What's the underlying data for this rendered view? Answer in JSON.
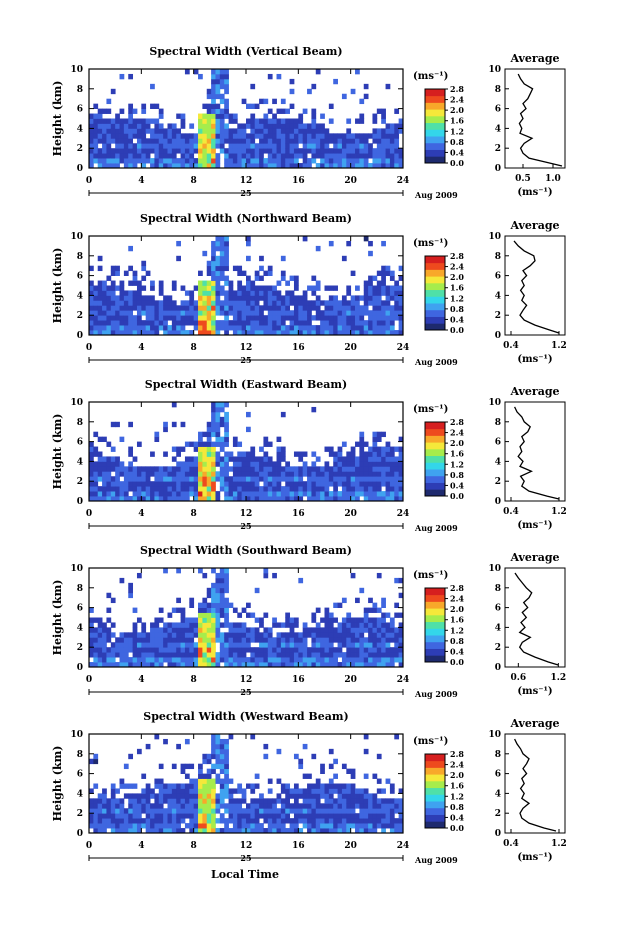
{
  "figure": {
    "xlabel": "Local Time",
    "date_label": "Aug 2009",
    "day_label": "25",
    "ylabel": "Height (km)",
    "avg_title": "Average",
    "colorbar_unit": "(ms⁻¹)",
    "avg_unit": "(ms⁻¹)",
    "colorbar_ticks": [
      "0.0",
      "0.4",
      "0.8",
      "1.2",
      "1.6",
      "2.0",
      "2.4",
      "2.8"
    ],
    "colormap": [
      "#1e2a6e",
      "#2d3db5",
      "#3f66e0",
      "#3fa2f0",
      "#33d6ea",
      "#4fe0a8",
      "#a6ec4c",
      "#f5e83a",
      "#f8a82a",
      "#ee4a1e",
      "#d61f1f"
    ]
  },
  "chart_data": [
    {
      "type": "heatmap",
      "title": "Spectral Width (Vertical Beam)",
      "xlabel": "",
      "ylabel": "Height (km)",
      "xlim": [
        0,
        24
      ],
      "ylim": [
        0,
        10
      ],
      "xticks": [
        0,
        4,
        8,
        12,
        16,
        20,
        24
      ],
      "yticks": [
        0,
        2,
        4,
        6,
        8,
        10
      ],
      "colorbar_range": [
        0.0,
        2.8
      ],
      "profile": {
        "title": "Average",
        "xlim": [
          0.2,
          1.2
        ],
        "xticks": [
          0.5,
          1.0
        ],
        "xticklabels": [
          "0.5",
          "1.0"
        ],
        "height_km": [
          0.2,
          0.5,
          1.0,
          1.5,
          2.0,
          2.5,
          3.0,
          3.5,
          4.0,
          4.5,
          5.0,
          5.5,
          6.0,
          6.5,
          7.0,
          7.5,
          8.0,
          8.5,
          9.0,
          9.5
        ],
        "values": [
          1.15,
          0.95,
          0.6,
          0.5,
          0.46,
          0.52,
          0.65,
          0.45,
          0.48,
          0.44,
          0.5,
          0.46,
          0.55,
          0.5,
          0.58,
          0.62,
          0.66,
          0.52,
          0.46,
          0.42
        ]
      }
    },
    {
      "type": "heatmap",
      "title": "Spectral Width (Northward Beam)",
      "xlabel": "",
      "ylabel": "Height (km)",
      "xlim": [
        0,
        24
      ],
      "ylim": [
        0,
        10
      ],
      "xticks": [
        0,
        4,
        8,
        12,
        16,
        20,
        24
      ],
      "yticks": [
        0,
        2,
        4,
        6,
        8,
        10
      ],
      "colorbar_range": [
        0.0,
        2.8
      ],
      "profile": {
        "title": "Average",
        "xlim": [
          0.3,
          1.3
        ],
        "xticks": [
          0.4,
          1.2
        ],
        "xticklabels": [
          "0.4",
          "1.2"
        ],
        "height_km": [
          0.2,
          0.5,
          1.0,
          1.5,
          2.0,
          2.5,
          3.0,
          3.5,
          4.0,
          4.5,
          5.0,
          5.5,
          6.0,
          6.5,
          7.0,
          7.5,
          8.0,
          8.5,
          9.0,
          9.5
        ],
        "values": [
          1.2,
          1.05,
          0.8,
          0.62,
          0.55,
          0.6,
          0.66,
          0.58,
          0.62,
          0.56,
          0.62,
          0.58,
          0.66,
          0.6,
          0.72,
          0.8,
          0.78,
          0.62,
          0.52,
          0.45
        ]
      }
    },
    {
      "type": "heatmap",
      "title": "Spectral Width (Eastward Beam)",
      "xlabel": "",
      "ylabel": "Height (km)",
      "xlim": [
        0,
        24
      ],
      "ylim": [
        0,
        10
      ],
      "xticks": [
        0,
        4,
        8,
        12,
        16,
        20,
        24
      ],
      "yticks": [
        0,
        2,
        4,
        6,
        8,
        10
      ],
      "colorbar_range": [
        0.0,
        2.8
      ],
      "profile": {
        "title": "Average",
        "xlim": [
          0.3,
          1.3
        ],
        "xticks": [
          0.4,
          1.2
        ],
        "xticklabels": [
          "0.4",
          "1.2"
        ],
        "height_km": [
          0.2,
          0.5,
          1.0,
          1.5,
          2.0,
          2.5,
          3.0,
          3.5,
          4.0,
          4.5,
          5.0,
          5.5,
          6.0,
          6.5,
          7.0,
          7.5,
          8.0,
          8.5,
          9.0,
          9.5
        ],
        "values": [
          1.2,
          1.0,
          0.7,
          0.58,
          0.62,
          0.56,
          0.74,
          0.55,
          0.6,
          0.52,
          0.58,
          0.55,
          0.62,
          0.58,
          0.68,
          0.72,
          0.62,
          0.58,
          0.5,
          0.46
        ]
      }
    },
    {
      "type": "heatmap",
      "title": "Spectral Width (Southward Beam)",
      "xlabel": "",
      "ylabel": "Height (km)",
      "xlim": [
        0,
        24
      ],
      "ylim": [
        0,
        10
      ],
      "xticks": [
        0,
        4,
        8,
        12,
        16,
        20,
        24
      ],
      "yticks": [
        0,
        2,
        4,
        6,
        8,
        10
      ],
      "colorbar_range": [
        0.0,
        2.8
      ],
      "profile": {
        "title": "Average",
        "xlim": [
          0.4,
          1.3
        ],
        "xticks": [
          0.6,
          1.2
        ],
        "xticklabels": [
          "0.6",
          "1.2"
        ],
        "height_km": [
          0.2,
          0.5,
          1.0,
          1.5,
          2.0,
          2.5,
          3.0,
          3.5,
          4.0,
          4.5,
          5.0,
          5.5,
          6.0,
          6.5,
          7.0,
          7.5,
          8.0,
          8.5,
          9.0,
          9.5
        ],
        "values": [
          1.2,
          1.05,
          0.85,
          0.68,
          0.62,
          0.66,
          0.78,
          0.62,
          0.7,
          0.64,
          0.72,
          0.66,
          0.74,
          0.68,
          0.76,
          0.8,
          0.72,
          0.66,
          0.6,
          0.55
        ]
      }
    },
    {
      "type": "heatmap",
      "title": "Spectral Width (Westward Beam)",
      "xlabel": "Local Time",
      "ylabel": "Height (km)",
      "xlim": [
        0,
        24
      ],
      "ylim": [
        0,
        10
      ],
      "xticks": [
        0,
        4,
        8,
        12,
        16,
        20,
        24
      ],
      "yticks": [
        0,
        2,
        4,
        6,
        8,
        10
      ],
      "colorbar_range": [
        0.0,
        2.8
      ],
      "profile": {
        "title": "Average",
        "xlim": [
          0.3,
          1.3
        ],
        "xticks": [
          0.4,
          1.2
        ],
        "xticklabels": [
          "0.4",
          "1.2"
        ],
        "height_km": [
          0.2,
          0.5,
          1.0,
          1.5,
          2.0,
          2.5,
          3.0,
          3.5,
          4.0,
          4.5,
          5.0,
          5.5,
          6.0,
          6.5,
          7.0,
          7.5,
          8.0,
          8.5,
          9.0,
          9.5
        ],
        "values": [
          1.15,
          0.95,
          0.7,
          0.58,
          0.55,
          0.6,
          0.7,
          0.58,
          0.62,
          0.56,
          0.62,
          0.58,
          0.66,
          0.6,
          0.66,
          0.7,
          0.6,
          0.56,
          0.5,
          0.46
        ]
      }
    }
  ]
}
